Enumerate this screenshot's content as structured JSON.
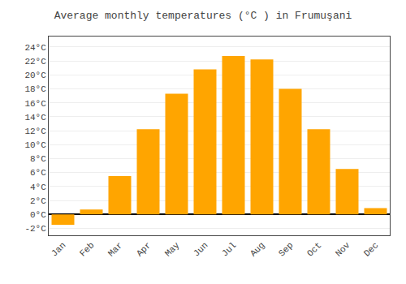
{
  "chart_data": {
    "type": "bar",
    "title": "Average monthly temperatures (°C ) in Frumuşani",
    "categories": [
      "Jan",
      "Feb",
      "Mar",
      "Apr",
      "May",
      "Jun",
      "Jul",
      "Aug",
      "Sep",
      "Oct",
      "Nov",
      "Dec"
    ],
    "values": [
      -1.5,
      0.7,
      5.5,
      12.2,
      17.3,
      20.8,
      22.7,
      22.2,
      18.0,
      12.2,
      6.5,
      0.9
    ],
    "color": "#FFA500",
    "ylim": [
      -3,
      25.5
    ],
    "yticks": [
      {
        "value": -2,
        "label": "-2°C"
      },
      {
        "value": 0,
        "label": "0°C"
      },
      {
        "value": 2,
        "label": "2°C"
      },
      {
        "value": 4,
        "label": "4°C"
      },
      {
        "value": 6,
        "label": "6°C"
      },
      {
        "value": 8,
        "label": "8°C"
      },
      {
        "value": 10,
        "label": "10°C"
      },
      {
        "value": 12,
        "label": "12°C"
      },
      {
        "value": 14,
        "label": "14°C"
      },
      {
        "value": 16,
        "label": "16°C"
      },
      {
        "value": 18,
        "label": "18°C"
      },
      {
        "value": 20,
        "label": "20°C"
      },
      {
        "value": 22,
        "label": "22°C"
      },
      {
        "value": 24,
        "label": "24°C"
      }
    ],
    "grid": true
  }
}
